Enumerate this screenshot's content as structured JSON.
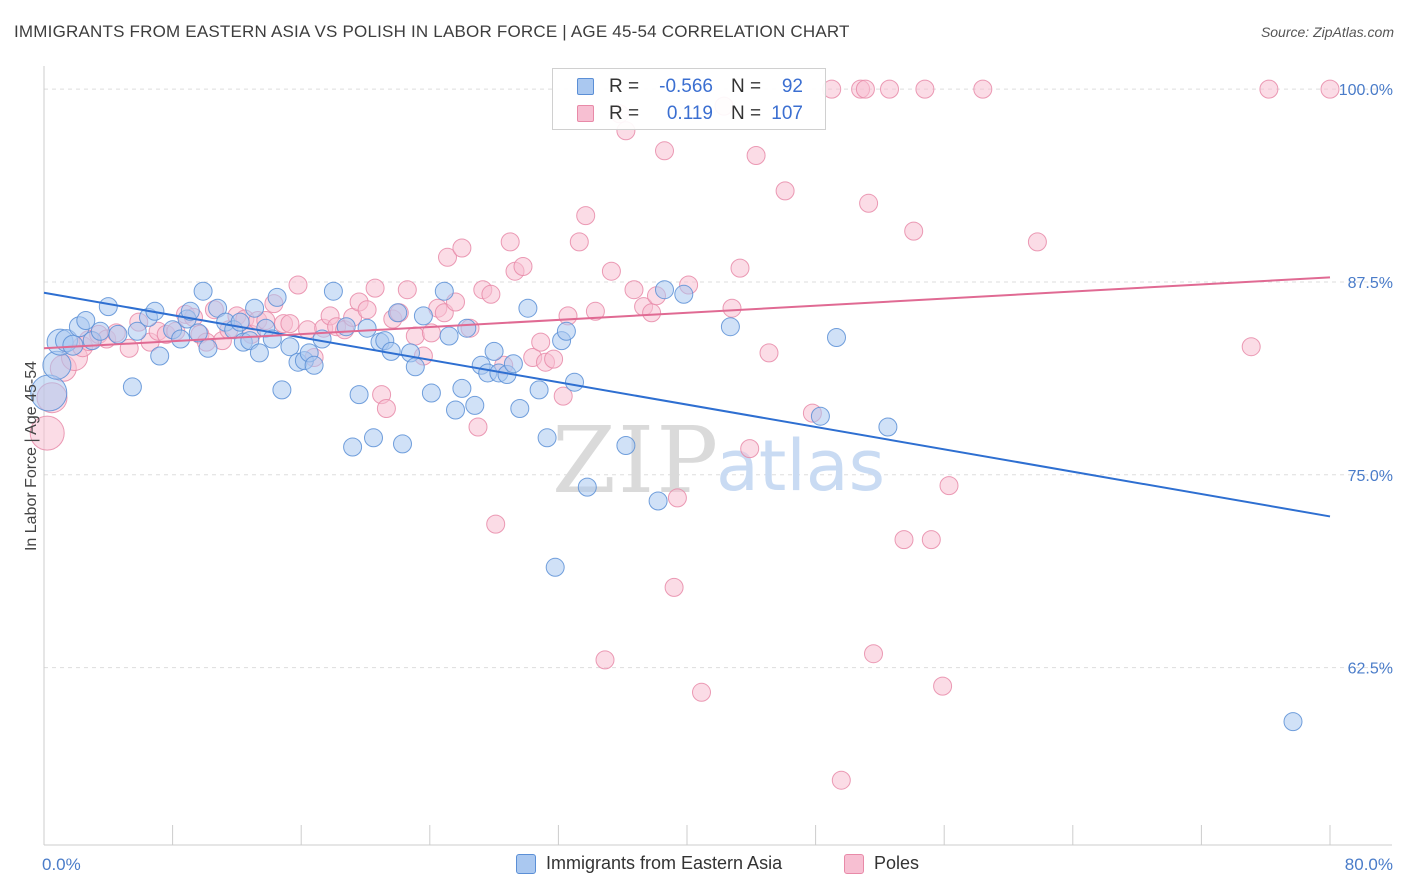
{
  "header": {
    "title": "IMMIGRANTS FROM EASTERN ASIA VS POLISH IN LABOR FORCE | AGE 45-54 CORRELATION CHART",
    "source": "Source: ZipAtlas.com"
  },
  "watermark": {
    "text_zip": "ZIP",
    "text_atlas": "atlas"
  },
  "legend": {
    "rows": [
      {
        "r_label": "R =",
        "r_value": "-0.566",
        "n_label": "N =",
        "n_value": "92"
      },
      {
        "r_label": "R =",
        "r_value": "0.119",
        "n_label": "N =",
        "n_value": "107"
      }
    ]
  },
  "bottom_legend": {
    "series1": "Immigrants from Eastern Asia",
    "series2": "Poles"
  },
  "colors": {
    "blue_fill": "#aac8f0",
    "blue_stroke": "#5b8fd6",
    "blue_line": "#2e6fd1",
    "pink_fill": "#f7bfd2",
    "pink_stroke": "#e88aa8",
    "pink_line": "#e06a93",
    "grid": "#dddddd",
    "tick_label": "#4a7cc9"
  },
  "chart_data": {
    "type": "scatter",
    "title": "IMMIGRANTS FROM EASTERN ASIA VS POLISH IN LABOR FORCE | AGE 45-54 CORRELATION CHART",
    "ylabel": "In Labor Force | Age 45-54",
    "xlabel": "",
    "xlim": [
      0,
      80
    ],
    "ylim": [
      51,
      101.5
    ],
    "x_tick_labels": [
      {
        "value": 0,
        "label": "0.0%"
      },
      {
        "value": 80,
        "label": "80.0%"
      }
    ],
    "y_tick_labels": [
      {
        "value": 100,
        "label": "100.0%"
      },
      {
        "value": 87.5,
        "label": "87.5%"
      },
      {
        "value": 75,
        "label": "75.0%"
      },
      {
        "value": 62.5,
        "label": "62.5%"
      }
    ],
    "grid": true,
    "legend_position": "top-center",
    "series": [
      {
        "name": "Immigrants from Eastern Asia",
        "r": -0.566,
        "n": 92,
        "trend": {
          "x": [
            0,
            80
          ],
          "y": [
            86.8,
            72.3
          ]
        },
        "points": [
          [
            0.3,
            80.3,
            18
          ],
          [
            0.8,
            82.1,
            14
          ],
          [
            1.0,
            83.6,
            13
          ],
          [
            1.4,
            83.7,
            11
          ],
          [
            1.8,
            83.4,
            10
          ],
          [
            2.2,
            84.6,
            10
          ],
          [
            2.6,
            85.0,
            9
          ],
          [
            3.0,
            83.7,
            9
          ],
          [
            3.5,
            84.3,
            9
          ],
          [
            4.0,
            85.9,
            9
          ],
          [
            4.6,
            84.1,
            9
          ],
          [
            5.5,
            80.7,
            9
          ],
          [
            5.8,
            84.3,
            9
          ],
          [
            6.5,
            85.2,
            9
          ],
          [
            6.9,
            85.6,
            9
          ],
          [
            7.2,
            82.7,
            9
          ],
          [
            8.0,
            84.4,
            9
          ],
          [
            8.5,
            83.8,
            9
          ],
          [
            8.9,
            85.1,
            9
          ],
          [
            9.1,
            85.6,
            9
          ],
          [
            9.6,
            84.2,
            9
          ],
          [
            9.9,
            86.9,
            9
          ],
          [
            10.2,
            83.2,
            9
          ],
          [
            10.8,
            85.8,
            9
          ],
          [
            11.3,
            84.9,
            9
          ],
          [
            11.8,
            84.4,
            9
          ],
          [
            12.2,
            84.9,
            9
          ],
          [
            12.4,
            83.6,
            9
          ],
          [
            12.8,
            83.7,
            9
          ],
          [
            13.1,
            85.8,
            9
          ],
          [
            13.4,
            82.9,
            9
          ],
          [
            13.8,
            84.5,
            9
          ],
          [
            14.2,
            83.8,
            9
          ],
          [
            14.5,
            86.5,
            9
          ],
          [
            14.8,
            80.5,
            9
          ],
          [
            15.3,
            83.3,
            9
          ],
          [
            15.8,
            82.3,
            9
          ],
          [
            16.2,
            82.4,
            9
          ],
          [
            16.5,
            82.9,
            9
          ],
          [
            16.8,
            82.1,
            9
          ],
          [
            17.3,
            83.8,
            9
          ],
          [
            18.0,
            86.9,
            9
          ],
          [
            18.8,
            84.6,
            9
          ],
          [
            19.2,
            76.8,
            9
          ],
          [
            19.6,
            80.2,
            9
          ],
          [
            20.1,
            84.5,
            9
          ],
          [
            20.5,
            77.4,
            9
          ],
          [
            20.9,
            83.6,
            9
          ],
          [
            21.2,
            83.7,
            9
          ],
          [
            21.6,
            83.0,
            9
          ],
          [
            22.0,
            85.5,
            9
          ],
          [
            22.3,
            77.0,
            9
          ],
          [
            22.8,
            82.9,
            9
          ],
          [
            23.1,
            82.0,
            9
          ],
          [
            23.6,
            85.3,
            9
          ],
          [
            24.1,
            80.3,
            9
          ],
          [
            24.9,
            86.9,
            9
          ],
          [
            25.2,
            84.0,
            9
          ],
          [
            25.6,
            79.2,
            9
          ],
          [
            26.0,
            80.6,
            9
          ],
          [
            26.3,
            84.5,
            9
          ],
          [
            26.8,
            79.5,
            9
          ],
          [
            27.2,
            82.1,
            9
          ],
          [
            27.6,
            81.6,
            9
          ],
          [
            28.0,
            83.0,
            9
          ],
          [
            28.3,
            81.6,
            9
          ],
          [
            28.8,
            81.5,
            9
          ],
          [
            29.2,
            82.2,
            9
          ],
          [
            29.6,
            79.3,
            9
          ],
          [
            30.1,
            85.8,
            9
          ],
          [
            30.8,
            80.5,
            9
          ],
          [
            31.3,
            77.4,
            9
          ],
          [
            31.8,
            69.0,
            9
          ],
          [
            32.2,
            83.7,
            9
          ],
          [
            32.5,
            84.3,
            9
          ],
          [
            33.0,
            81.0,
            9
          ],
          [
            33.8,
            74.2,
            9
          ],
          [
            36.2,
            76.9,
            9
          ],
          [
            38.2,
            73.3,
            9
          ],
          [
            38.6,
            87.0,
            9
          ],
          [
            39.8,
            86.7,
            9
          ],
          [
            42.7,
            84.6,
            9
          ],
          [
            48.3,
            78.8,
            9
          ],
          [
            49.3,
            83.9,
            9
          ],
          [
            52.5,
            78.1,
            9
          ],
          [
            77.7,
            59.0,
            9
          ]
        ]
      },
      {
        "name": "Poles",
        "r": 0.119,
        "n": 107,
        "trend": {
          "x": [
            0,
            80
          ],
          "y": [
            83.2,
            87.8
          ]
        },
        "points": [
          [
            0.2,
            77.7,
            17
          ],
          [
            0.5,
            80.0,
            15
          ],
          [
            1.2,
            81.9,
            13
          ],
          [
            1.9,
            82.6,
            13
          ],
          [
            2.4,
            83.3,
            10
          ],
          [
            2.8,
            83.7,
            10
          ],
          [
            3.4,
            84.1,
            9
          ],
          [
            3.9,
            83.8,
            9
          ],
          [
            4.5,
            84.2,
            9
          ],
          [
            5.3,
            83.2,
            9
          ],
          [
            5.9,
            84.9,
            9
          ],
          [
            6.6,
            83.6,
            9
          ],
          [
            7.1,
            84.3,
            9
          ],
          [
            7.6,
            84.1,
            9
          ],
          [
            8.2,
            84.3,
            9
          ],
          [
            8.8,
            85.4,
            9
          ],
          [
            9.3,
            85.2,
            9
          ],
          [
            9.7,
            84.1,
            9
          ],
          [
            10.1,
            83.6,
            9
          ],
          [
            10.6,
            85.7,
            9
          ],
          [
            11.1,
            83.7,
            9
          ],
          [
            11.5,
            84.4,
            9
          ],
          [
            12.0,
            85.3,
            9
          ],
          [
            12.5,
            85.1,
            9
          ],
          [
            12.9,
            84.1,
            9
          ],
          [
            13.3,
            85.0,
            9
          ],
          [
            13.8,
            85.0,
            9
          ],
          [
            14.3,
            86.1,
            9
          ],
          [
            14.9,
            84.8,
            9
          ],
          [
            15.3,
            84.8,
            9
          ],
          [
            15.8,
            87.3,
            9
          ],
          [
            16.4,
            84.4,
            9
          ],
          [
            16.8,
            82.6,
            9
          ],
          [
            17.4,
            84.5,
            9
          ],
          [
            17.8,
            85.3,
            9
          ],
          [
            18.2,
            84.6,
            9
          ],
          [
            18.7,
            84.4,
            9
          ],
          [
            19.2,
            85.2,
            9
          ],
          [
            19.6,
            86.2,
            9
          ],
          [
            20.1,
            85.7,
            9
          ],
          [
            20.6,
            87.1,
            9
          ],
          [
            21.0,
            80.2,
            9
          ],
          [
            21.3,
            79.3,
            9
          ],
          [
            21.7,
            85.1,
            9
          ],
          [
            22.1,
            85.5,
            9
          ],
          [
            22.6,
            87.0,
            9
          ],
          [
            23.1,
            84.0,
            9
          ],
          [
            23.6,
            82.7,
            9
          ],
          [
            24.1,
            84.2,
            9
          ],
          [
            24.5,
            85.8,
            9
          ],
          [
            24.9,
            85.5,
            9
          ],
          [
            25.1,
            89.1,
            9
          ],
          [
            25.6,
            86.2,
            9
          ],
          [
            26.0,
            89.7,
            9
          ],
          [
            26.5,
            84.5,
            9
          ],
          [
            27.0,
            78.1,
            9
          ],
          [
            27.3,
            87.0,
            9
          ],
          [
            27.8,
            86.7,
            9
          ],
          [
            28.1,
            71.8,
            9
          ],
          [
            28.6,
            82.1,
            9
          ],
          [
            29.0,
            90.1,
            9
          ],
          [
            29.3,
            88.2,
            9
          ],
          [
            29.8,
            88.5,
            9
          ],
          [
            30.4,
            82.6,
            9
          ],
          [
            30.9,
            83.6,
            9
          ],
          [
            31.2,
            82.3,
            9
          ],
          [
            31.7,
            82.5,
            9
          ],
          [
            32.3,
            80.1,
            9
          ],
          [
            32.6,
            85.3,
            9
          ],
          [
            33.3,
            90.1,
            9
          ],
          [
            33.7,
            91.8,
            9
          ],
          [
            34.3,
            85.6,
            9
          ],
          [
            34.9,
            63.0,
            9
          ],
          [
            35.3,
            88.2,
            9
          ],
          [
            35.8,
            98.4,
            9
          ],
          [
            36.2,
            97.3,
            9
          ],
          [
            36.7,
            87.0,
            9
          ],
          [
            37.3,
            85.9,
            9
          ],
          [
            37.8,
            85.5,
            9
          ],
          [
            38.1,
            86.6,
            9
          ],
          [
            38.6,
            96.0,
            9
          ],
          [
            39.2,
            67.7,
            9
          ],
          [
            39.4,
            73.5,
            9
          ],
          [
            40.1,
            87.3,
            9
          ],
          [
            40.9,
            60.9,
            9
          ],
          [
            42.3,
            98.9,
            9
          ],
          [
            42.8,
            85.8,
            9
          ],
          [
            43.3,
            88.4,
            9
          ],
          [
            43.9,
            76.7,
            9
          ],
          [
            44.3,
            95.7,
            9
          ],
          [
            45.1,
            82.9,
            9
          ],
          [
            46.1,
            93.4,
            9
          ],
          [
            47.8,
            79.0,
            9
          ],
          [
            49.0,
            100.0,
            9
          ],
          [
            49.6,
            55.2,
            9
          ],
          [
            50.8,
            100.0,
            9
          ],
          [
            51.1,
            100.0,
            9
          ],
          [
            51.3,
            92.6,
            9
          ],
          [
            51.6,
            63.4,
            9
          ],
          [
            52.6,
            100.0,
            9
          ],
          [
            53.5,
            70.8,
            9
          ],
          [
            54.1,
            90.8,
            9
          ],
          [
            54.8,
            100.0,
            9
          ],
          [
            55.2,
            70.8,
            9
          ],
          [
            55.9,
            61.3,
            9
          ],
          [
            56.3,
            74.3,
            9
          ],
          [
            58.4,
            100.0,
            9
          ],
          [
            61.8,
            90.1,
            9
          ],
          [
            75.1,
            83.3,
            9
          ],
          [
            76.2,
            100.0,
            9
          ],
          [
            80.0,
            100.0,
            9
          ]
        ]
      }
    ]
  }
}
